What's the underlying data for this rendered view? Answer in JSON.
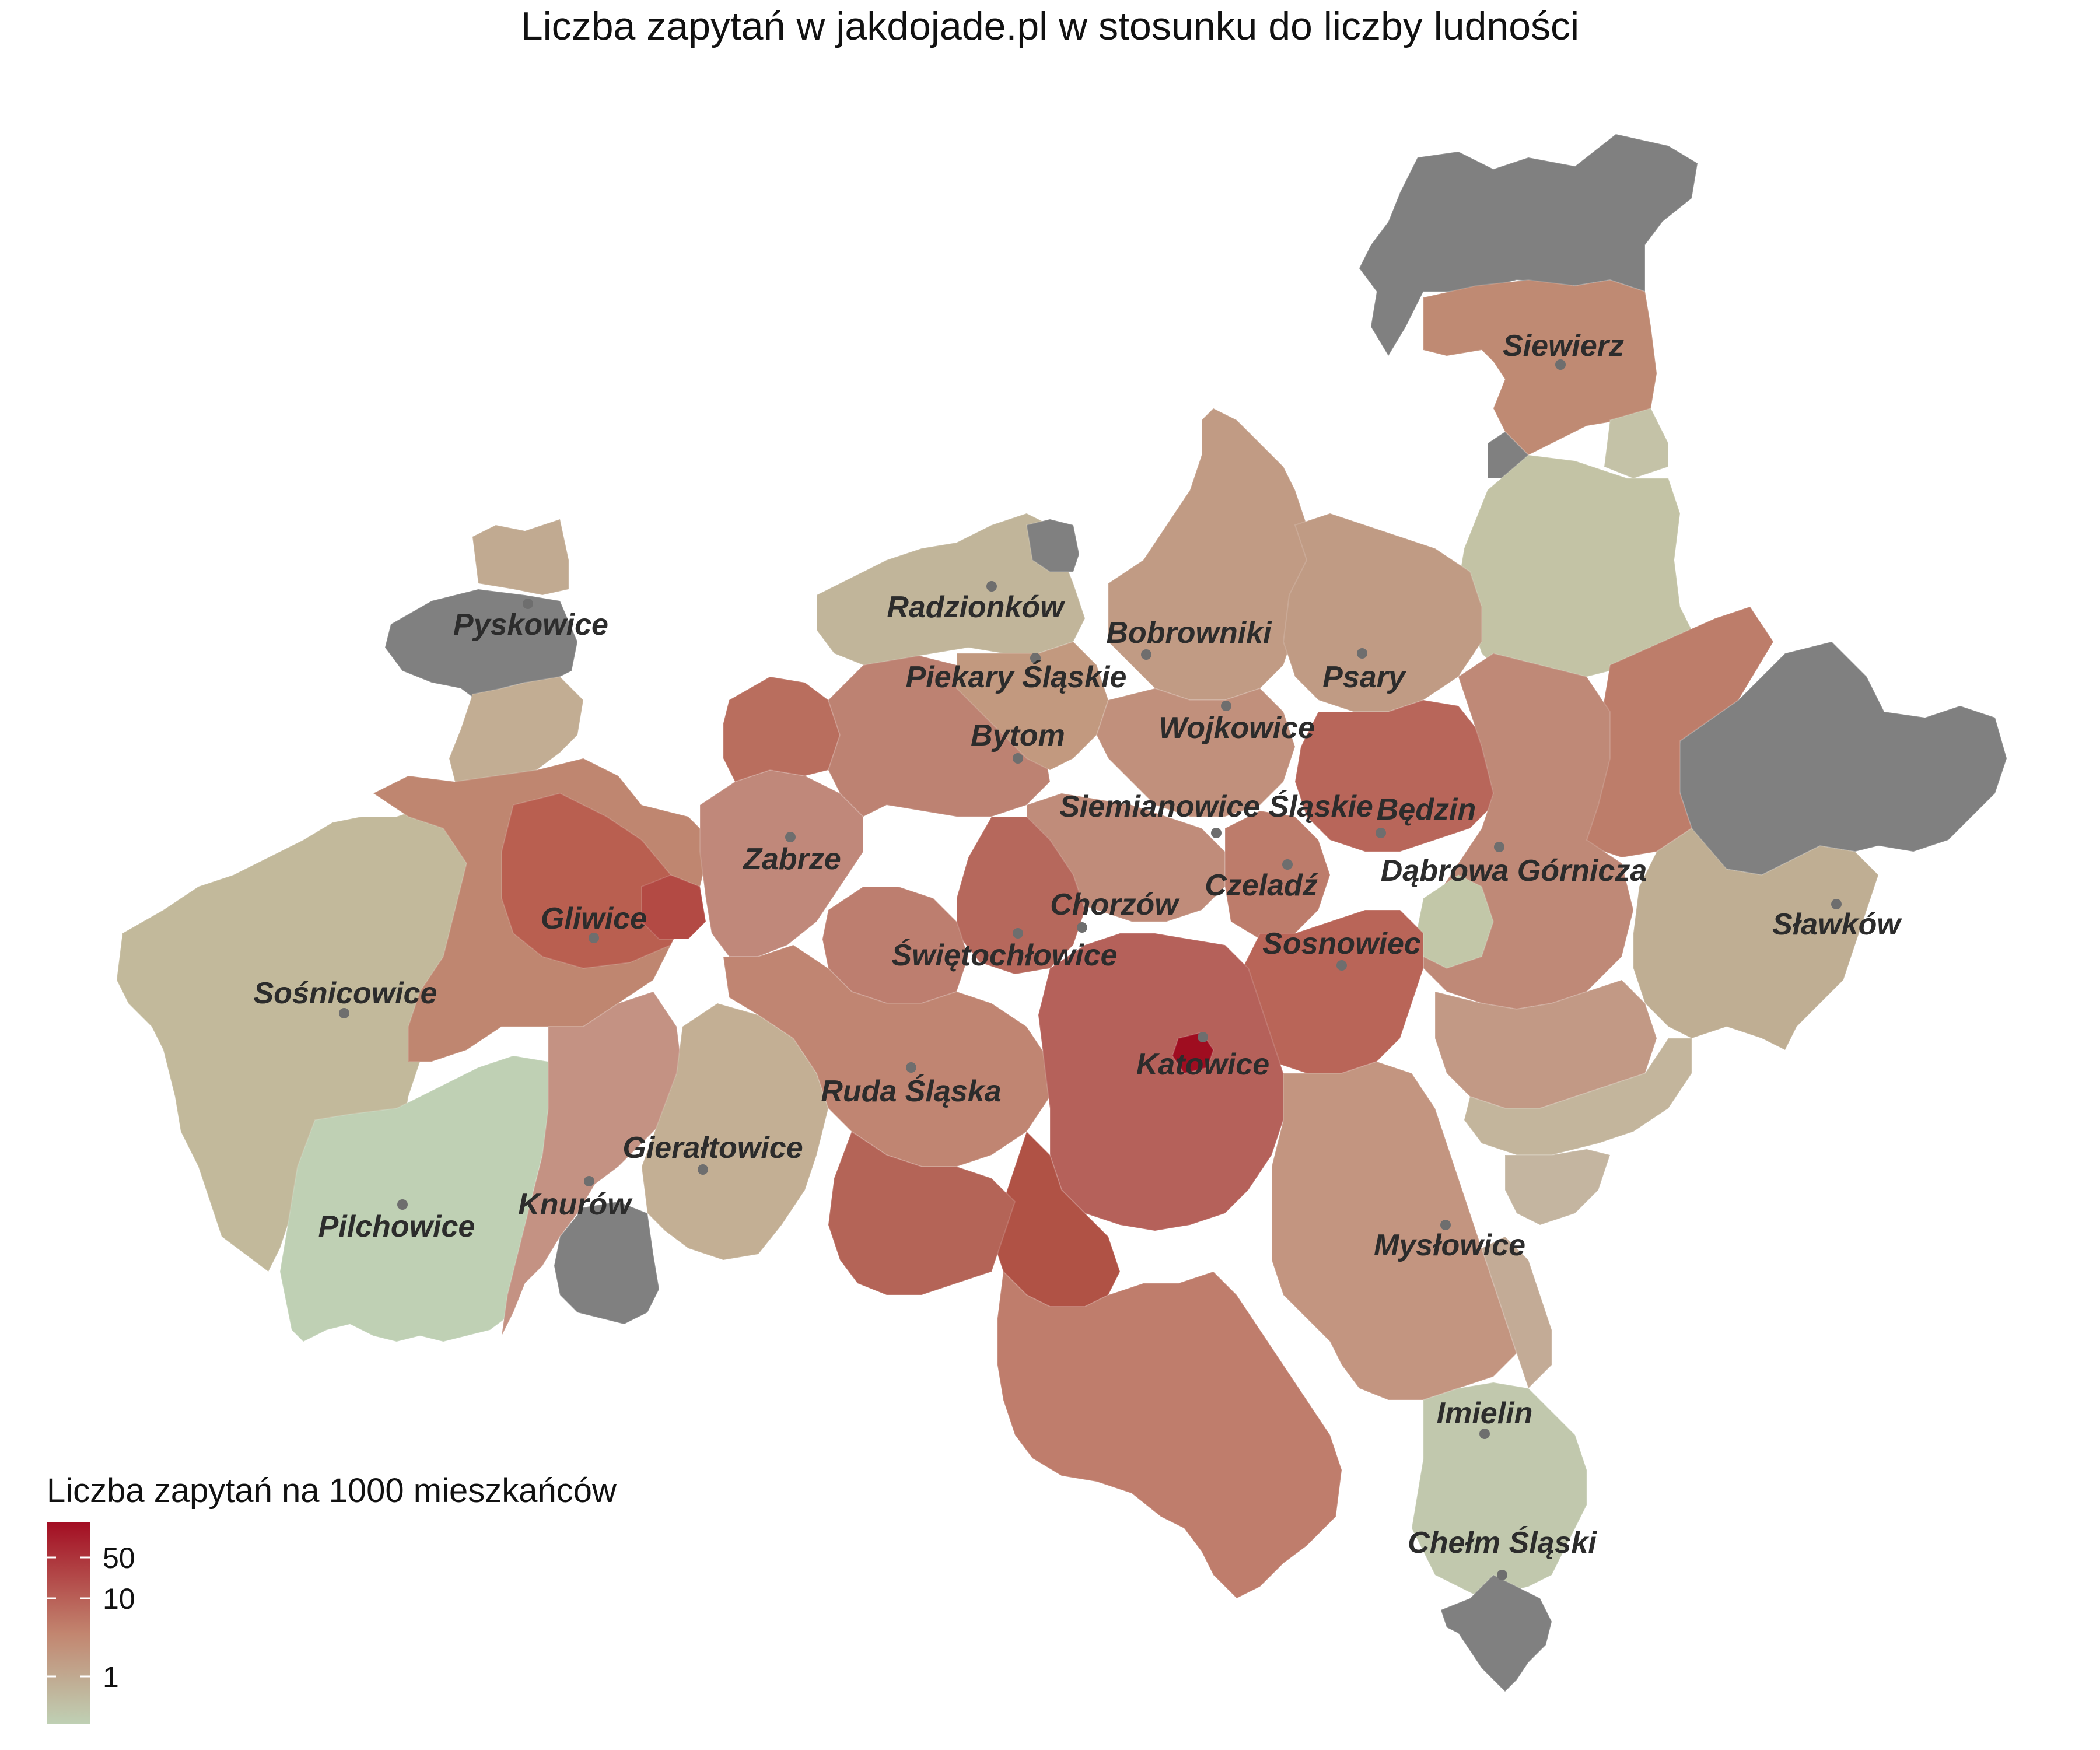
{
  "title": "Liczba zapytań w jakdojade.pl w stosunku do liczby ludności",
  "legend": {
    "title": "Liczba zapytań na 1000 mieszkańców",
    "ticks": [
      "50",
      "10",
      "1"
    ],
    "scale": "log",
    "colors": {
      "high": "#a30e23",
      "mid": "#c2856f",
      "low": "#bfd0b4"
    }
  },
  "colors": {
    "no_data": "#808080",
    "tan": "#b8ab8f",
    "salmon": "#bd8a78",
    "rose": "#b96e5e",
    "red": "#b04a43",
    "dark_red": "#9f0d20",
    "greenish": "#bfcaaa",
    "light_green": "#bfd0b4"
  },
  "cities": [
    {
      "name": "Siewierz"
    },
    {
      "name": "Pyskowice"
    },
    {
      "name": "Radzionków"
    },
    {
      "name": "Bobrowniki"
    },
    {
      "name": "Piekary Śląskie"
    },
    {
      "name": "Psary"
    },
    {
      "name": "Wojkowice"
    },
    {
      "name": "Bytom"
    },
    {
      "name": "Siemianowice Śląskie"
    },
    {
      "name": "Będzin"
    },
    {
      "name": "Zabrze"
    },
    {
      "name": "Dąbrowa Górnicza"
    },
    {
      "name": "Czeladź"
    },
    {
      "name": "Chorzów"
    },
    {
      "name": "Gliwice"
    },
    {
      "name": "Sławków"
    },
    {
      "name": "Sosnowiec"
    },
    {
      "name": "Świętochłowice"
    },
    {
      "name": "Sośnicowice"
    },
    {
      "name": "Katowice"
    },
    {
      "name": "Ruda Śląska"
    },
    {
      "name": "Gierałtowice"
    },
    {
      "name": "Knurów"
    },
    {
      "name": "Pilchowice"
    },
    {
      "name": "Mysłowice"
    },
    {
      "name": "Imielin"
    },
    {
      "name": "Chełm Śląski"
    }
  ]
}
